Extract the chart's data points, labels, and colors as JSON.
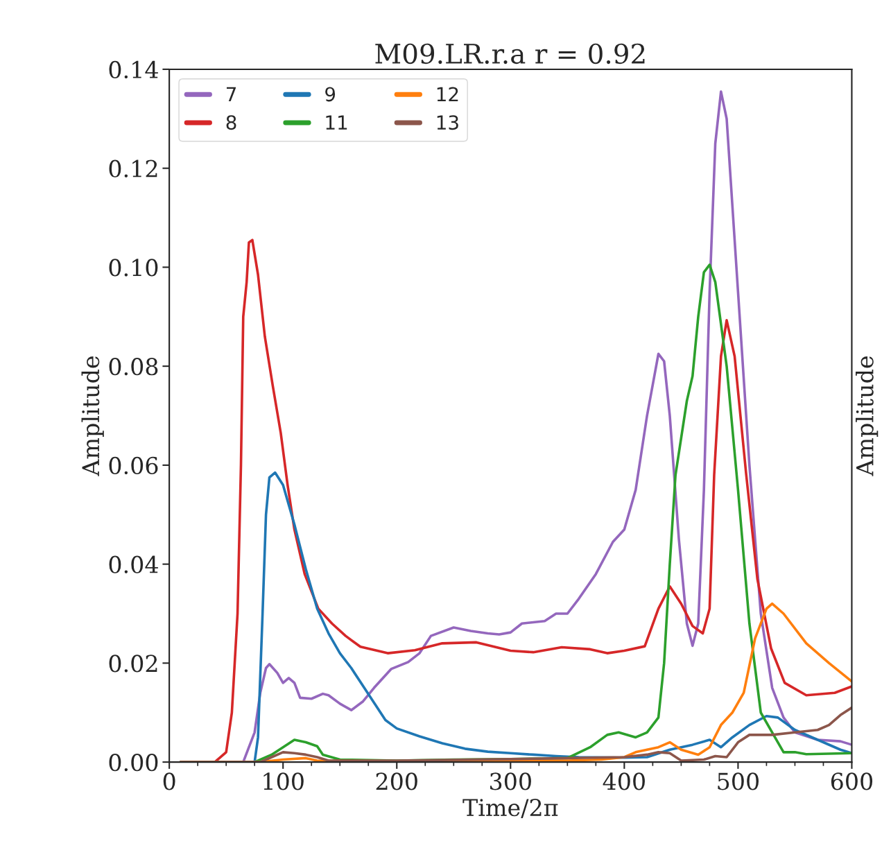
{
  "chart_data": {
    "type": "line",
    "title": "M09.LR.r.a r = 0.92",
    "xlabel": "Time/2π",
    "ylabel": "Amplitude",
    "y2label": "Amplitude",
    "xlim": [
      0,
      600
    ],
    "ylim": [
      0,
      0.14
    ],
    "xticks": [
      0,
      {
        "value": 25,
        "label": null
      },
      {
        "value": 50,
        "label": null
      },
      {
        "value": 75,
        "label": null
      },
      100,
      {
        "value": 125,
        "label": null
      },
      {
        "value": 150,
        "label": null
      },
      {
        "value": 175,
        "label": null
      },
      200,
      {
        "value": 225,
        "label": null
      },
      {
        "value": 250,
        "label": null
      },
      {
        "value": 275,
        "label": null
      },
      300,
      {
        "value": 325,
        "label": null
      },
      {
        "value": 350,
        "label": null
      },
      {
        "value": 375,
        "label": null
      },
      400,
      {
        "value": 425,
        "label": null
      },
      {
        "value": 450,
        "label": null
      },
      {
        "value": 475,
        "label": null
      },
      500,
      {
        "value": 525,
        "label": null
      },
      {
        "value": 550,
        "label": null
      },
      {
        "value": 575,
        "label": null
      },
      600
    ],
    "yticks": [
      {
        "value": 0,
        "label": "0.00"
      },
      0.02,
      0.04,
      0.06,
      0.08,
      {
        "value": 0.1,
        "label": "0.10"
      },
      0.12,
      0.14
    ],
    "grid": false,
    "legend": "top left",
    "marker": "none",
    "line_style": "solid",
    "series": [
      {
        "name": "7",
        "color": "#9467bd",
        "x": [
          10,
          65,
          70,
          75,
          80,
          85,
          88,
          95,
          100,
          105,
          110,
          115,
          125,
          135,
          140,
          150,
          160,
          170,
          180,
          195,
          210,
          220,
          230,
          250,
          265,
          280,
          290,
          300,
          310,
          330,
          340,
          350,
          360,
          375,
          390,
          400,
          410,
          420,
          430,
          435,
          440,
          448,
          455,
          460,
          465,
          470,
          475,
          480,
          485,
          490,
          500,
          510,
          520,
          530,
          540,
          550,
          570,
          590,
          600
        ],
        "values": [
          0,
          0,
          0.003,
          0.006,
          0.014,
          0.019,
          0.0198,
          0.018,
          0.016,
          0.017,
          0.016,
          0.013,
          0.0128,
          0.0138,
          0.0135,
          0.0118,
          0.0105,
          0.0122,
          0.015,
          0.0188,
          0.0202,
          0.022,
          0.0255,
          0.0272,
          0.0265,
          0.026,
          0.0258,
          0.0262,
          0.028,
          0.0285,
          0.03,
          0.03,
          0.033,
          0.038,
          0.0445,
          0.047,
          0.055,
          0.07,
          0.0825,
          0.081,
          0.07,
          0.045,
          0.028,
          0.0235,
          0.028,
          0.055,
          0.095,
          0.125,
          0.1355,
          0.13,
          0.095,
          0.06,
          0.03,
          0.015,
          0.009,
          0.006,
          0.0045,
          0.0042,
          0.0035
        ]
      },
      {
        "name": "8",
        "color": "#d62728",
        "x": [
          10,
          40,
          50,
          55,
          60,
          63,
          65,
          68,
          70,
          73,
          78,
          84,
          91,
          98,
          104,
          110,
          119,
          131,
          143,
          155,
          168,
          192,
          216,
          240,
          270,
          300,
          320,
          345,
          370,
          385,
          400,
          418,
          430,
          440,
          450,
          460,
          469,
          475,
          479,
          485,
          490,
          497,
          507,
          517,
          529,
          541,
          560,
          585,
          600
        ],
        "values": [
          0,
          0,
          0.002,
          0.01,
          0.03,
          0.06,
          0.09,
          0.097,
          0.105,
          0.1055,
          0.0985,
          0.086,
          0.076,
          0.0665,
          0.056,
          0.047,
          0.038,
          0.031,
          0.028,
          0.0255,
          0.0233,
          0.022,
          0.0226,
          0.024,
          0.0242,
          0.0225,
          0.0222,
          0.0232,
          0.0228,
          0.022,
          0.0225,
          0.0234,
          0.031,
          0.0355,
          0.032,
          0.0275,
          0.026,
          0.031,
          0.058,
          0.082,
          0.0893,
          0.082,
          0.0585,
          0.037,
          0.023,
          0.016,
          0.0135,
          0.014,
          0.0153
        ]
      },
      {
        "name": "9",
        "color": "#1f77b4",
        "x": [
          10,
          75,
          78,
          82,
          85,
          88,
          93,
          100,
          110,
          120,
          130,
          140,
          150,
          160,
          170,
          180,
          190,
          200,
          220,
          240,
          260,
          280,
          300,
          320,
          340,
          360,
          400,
          420,
          440,
          460,
          475,
          485,
          495,
          510,
          525,
          535,
          550,
          570,
          590,
          600
        ],
        "values": [
          0,
          0,
          0.005,
          0.03,
          0.05,
          0.0575,
          0.0585,
          0.056,
          0.048,
          0.039,
          0.031,
          0.026,
          0.022,
          0.019,
          0.0155,
          0.012,
          0.0085,
          0.0068,
          0.0052,
          0.0038,
          0.0027,
          0.0021,
          0.0018,
          0.0015,
          0.0012,
          0.001,
          0.0009,
          0.001,
          0.0025,
          0.0035,
          0.0045,
          0.003,
          0.005,
          0.0075,
          0.0093,
          0.009,
          0.0065,
          0.0045,
          0.0025,
          0.0018
        ]
      },
      {
        "name": "11",
        "color": "#2ca02c",
        "x": [
          10,
          75,
          90,
          100,
          110,
          120,
          130,
          135,
          150,
          200,
          250,
          300,
          350,
          370,
          385,
          395,
          410,
          420,
          430,
          435,
          440,
          445,
          455,
          460,
          465,
          470,
          475,
          480,
          490,
          500,
          510,
          520,
          530,
          540,
          550,
          560,
          600
        ],
        "values": [
          0,
          0,
          0.0015,
          0.003,
          0.0045,
          0.004,
          0.0032,
          0.0015,
          0.0005,
          0.0003,
          0.0005,
          0.0006,
          0.0008,
          0.003,
          0.0055,
          0.006,
          0.005,
          0.006,
          0.009,
          0.02,
          0.04,
          0.058,
          0.073,
          0.078,
          0.09,
          0.099,
          0.1005,
          0.097,
          0.08,
          0.055,
          0.028,
          0.01,
          0.006,
          0.002,
          0.002,
          0.0016,
          0.0018
        ]
      },
      {
        "name": "12",
        "color": "#ff7f0e",
        "x": [
          10,
          80,
          100,
          120,
          130,
          200,
          350,
          380,
          400,
          410,
          430,
          440,
          450,
          465,
          475,
          485,
          495,
          505,
          515,
          525,
          530,
          540,
          560,
          580,
          600
        ],
        "values": [
          0,
          0,
          0.0005,
          0.0008,
          0.0003,
          0.0002,
          0.0003,
          0.0005,
          0.001,
          0.002,
          0.003,
          0.004,
          0.0025,
          0.0015,
          0.003,
          0.0075,
          0.01,
          0.014,
          0.025,
          0.031,
          0.032,
          0.03,
          0.024,
          0.02,
          0.0163
        ]
      },
      {
        "name": "13",
        "color": "#8c564b",
        "x": [
          10,
          80,
          90,
          100,
          110,
          120,
          130,
          140,
          200,
          300,
          400,
          420,
          430,
          440,
          450,
          470,
          480,
          490,
          500,
          510,
          530,
          550,
          570,
          580,
          590,
          600
        ],
        "values": [
          0,
          0,
          0.001,
          0.002,
          0.0018,
          0.0015,
          0.001,
          0.0003,
          0.0003,
          0.0006,
          0.001,
          0.0015,
          0.002,
          0.0018,
          0.0003,
          0.0005,
          0.0012,
          0.001,
          0.004,
          0.0055,
          0.0055,
          0.006,
          0.0065,
          0.0075,
          0.0095,
          0.011
        ]
      }
    ]
  }
}
